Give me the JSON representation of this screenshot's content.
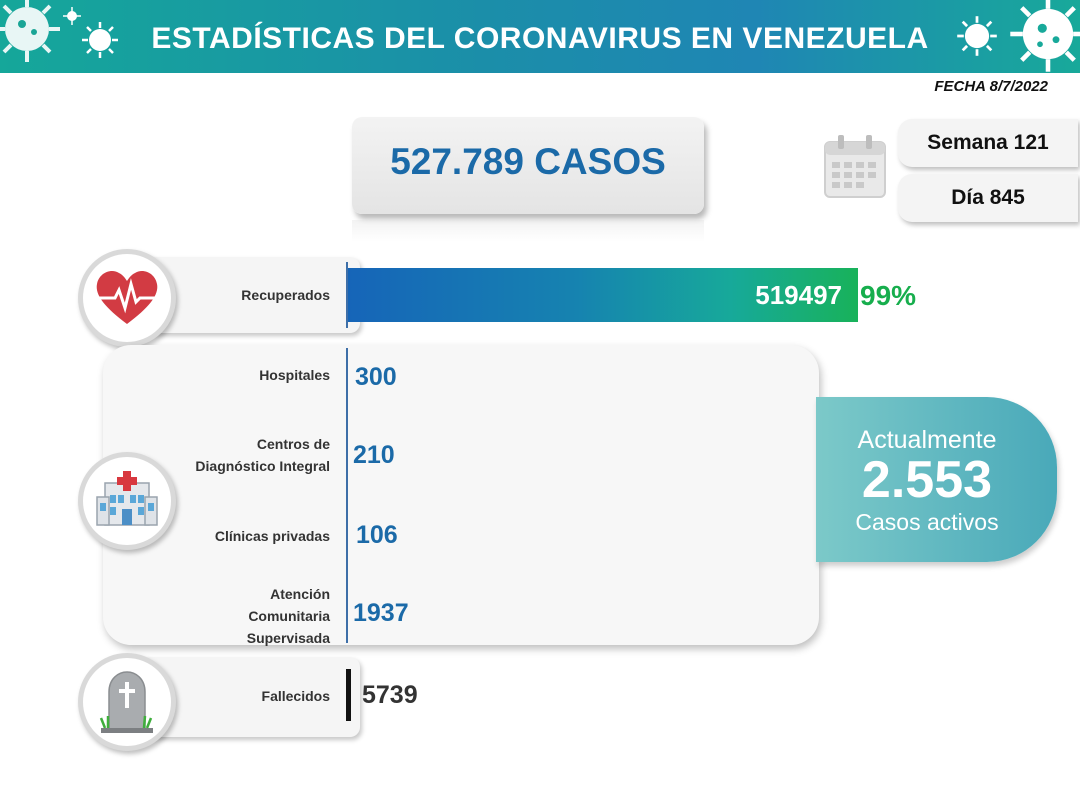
{
  "header": {
    "title": "ESTADÍSTICAS DEL CORONAVIRUS EN VENEZUELA",
    "date": "FECHA 8/7/2022",
    "icons": [
      "virus-icon"
    ],
    "colors": {
      "banner": "#1b8ea9",
      "accent": "#1b6aa8",
      "green": "#17ae4d"
    }
  },
  "total_cases": "527.789 CASOS",
  "calendar": {
    "icon": "calendar-icon",
    "week": "Semana 121",
    "day": "Día 845"
  },
  "recovered": {
    "icon": "heart-pulse-icon",
    "label": "Recuperados",
    "value": "519497",
    "percent": "99%"
  },
  "hospitalization": {
    "icon": "hospital-icon",
    "items": [
      {
        "label": "Hospitales",
        "value": "300"
      },
      {
        "label": "Centros de Diagnóstico Integral",
        "label_l1": "Centros de",
        "label_l2": "Diagnóstico Integral",
        "value": "210"
      },
      {
        "label": "Clínicas privadas",
        "value": "106"
      },
      {
        "label": "Atención Comunitaria Supervisada",
        "label_l1": "Atención",
        "label_l2": "Comunitaria",
        "label_l3": "Supervisada",
        "value": "1937"
      }
    ]
  },
  "active": {
    "line1": "Actualmente",
    "number": "2.553",
    "line2": "Casos activos"
  },
  "deaths": {
    "icon": "tombstone-icon",
    "label": "Fallecidos",
    "value": "5739"
  }
}
